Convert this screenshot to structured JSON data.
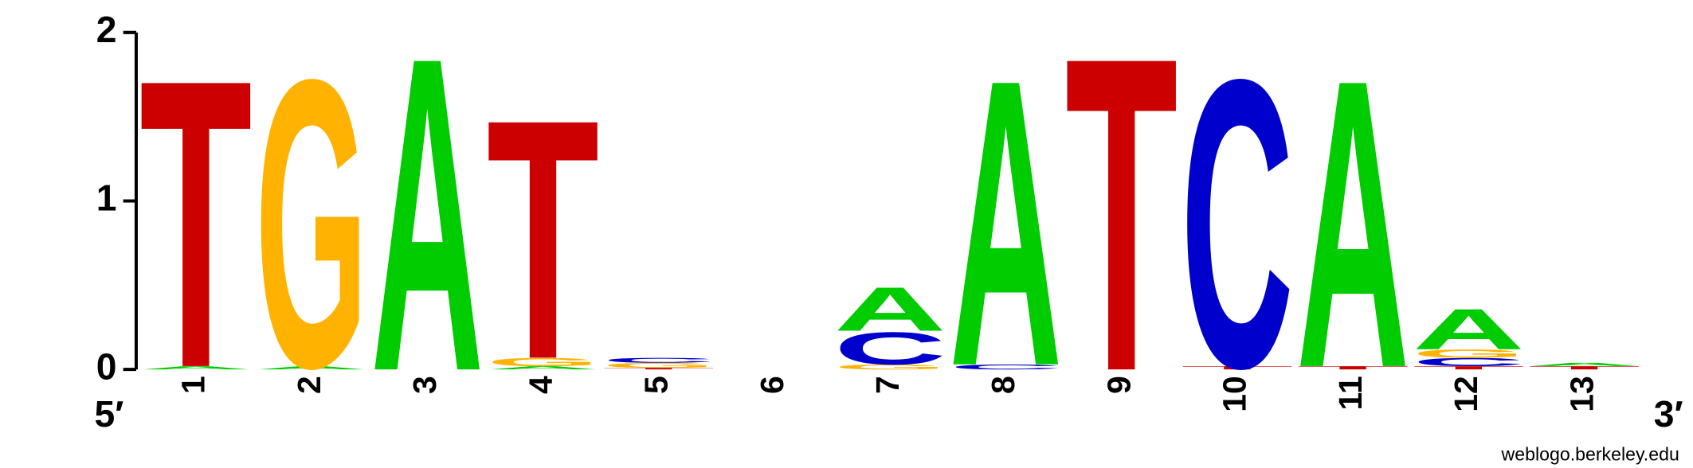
{
  "chart_data": {
    "type": "logo",
    "ylim": [
      0,
      2
    ],
    "yticks": [
      0,
      1,
      2
    ],
    "colors": {
      "A": "#00cc00",
      "C": "#0000cc",
      "G": "#ffb300",
      "T": "#cc0000"
    },
    "left_end": "5′",
    "right_end": "3′",
    "credit": "weblogo.berkeley.edu",
    "positions": [
      {
        "label": "1",
        "letters": [
          {
            "letter": "A",
            "bits": 0.02
          },
          {
            "letter": "T",
            "bits": 1.78
          }
        ]
      },
      {
        "label": "2",
        "letters": [
          {
            "letter": "A",
            "bits": 0.02
          },
          {
            "letter": "G",
            "bits": 1.78
          }
        ]
      },
      {
        "label": "3",
        "letters": [
          {
            "letter": "A",
            "bits": 1.94
          }
        ]
      },
      {
        "label": "4",
        "letters": [
          {
            "letter": "A",
            "bits": 0.02
          },
          {
            "letter": "G",
            "bits": 0.05
          },
          {
            "letter": "T",
            "bits": 1.48
          }
        ]
      },
      {
        "label": "5",
        "letters": [
          {
            "letter": "T",
            "bits": 0.01
          },
          {
            "letter": "G",
            "bits": 0.03
          },
          {
            "letter": "C",
            "bits": 0.03
          }
        ]
      },
      {
        "label": "6",
        "letters": []
      },
      {
        "label": "7",
        "letters": [
          {
            "letter": "G",
            "bits": 0.03
          },
          {
            "letter": "C",
            "bits": 0.2
          },
          {
            "letter": "A",
            "bits": 0.27
          }
        ]
      },
      {
        "label": "8",
        "letters": [
          {
            "letter": "C",
            "bits": 0.03
          },
          {
            "letter": "A",
            "bits": 1.77
          }
        ]
      },
      {
        "label": "9",
        "letters": [
          {
            "letter": "T",
            "bits": 1.94
          }
        ]
      },
      {
        "label": "10",
        "letters": [
          {
            "letter": "T",
            "bits": 0.02
          },
          {
            "letter": "C",
            "bits": 1.78
          }
        ]
      },
      {
        "label": "11",
        "letters": [
          {
            "letter": "T",
            "bits": 0.02
          },
          {
            "letter": "A",
            "bits": 1.78
          }
        ]
      },
      {
        "label": "12",
        "letters": [
          {
            "letter": "T",
            "bits": 0.02
          },
          {
            "letter": "C",
            "bits": 0.05
          },
          {
            "letter": "G",
            "bits": 0.05
          },
          {
            "letter": "A",
            "bits": 0.25
          }
        ]
      },
      {
        "label": "13",
        "letters": [
          {
            "letter": "T",
            "bits": 0.02
          },
          {
            "letter": "A",
            "bits": 0.02
          }
        ]
      }
    ]
  }
}
